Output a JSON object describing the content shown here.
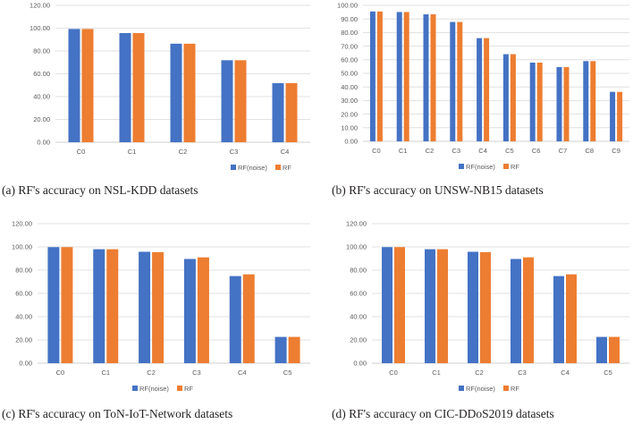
{
  "colors": {
    "rf_noise": "#4472c4",
    "rf": "#ed7d31",
    "grid": "#d9d9d9",
    "axis": "#bfbfbf",
    "text": "#595959"
  },
  "chart_data": [
    {
      "id": "a",
      "type": "bar",
      "caption": "(a) RF's  accuracy on NSL-KDD datasets",
      "categories": [
        "C0",
        "C1",
        "C2",
        "C3",
        "C4"
      ],
      "series": [
        {
          "name": "RF(noise)",
          "values": [
            99.3,
            95.7,
            86.4,
            71.9,
            51.8
          ]
        },
        {
          "name": "RF",
          "values": [
            99.3,
            95.7,
            86.4,
            71.9,
            51.8
          ]
        }
      ],
      "yticks": [
        "0.00",
        "20.00",
        "40.00",
        "60.00",
        "80.00",
        "100.00",
        "120.00"
      ],
      "ylim": [
        0,
        120
      ],
      "legend": "bottom-right"
    },
    {
      "id": "b",
      "type": "bar",
      "caption": "(b) RF's accuracy on UNSW-NB15 datasets",
      "categories": [
        "C0",
        "C1",
        "C2",
        "C3",
        "C4",
        "C5",
        "C6",
        "C7",
        "C8",
        "C9"
      ],
      "series": [
        {
          "name": "RF(noise)",
          "values": [
            95.5,
            95.1,
            93.4,
            87.8,
            75.9,
            64.1,
            57.9,
            54.6,
            59.0,
            36.4
          ]
        },
        {
          "name": "RF",
          "values": [
            95.5,
            95.1,
            93.4,
            87.8,
            75.9,
            64.1,
            57.9,
            54.6,
            59.0,
            36.4
          ]
        }
      ],
      "yticks": [
        "0.00",
        "10.00",
        "20.00",
        "30.00",
        "40.00",
        "50.00",
        "60.00",
        "70.00",
        "80.00",
        "90.00",
        "100.00"
      ],
      "ylim": [
        0,
        100
      ],
      "legend": "bottom-right"
    },
    {
      "id": "c",
      "type": "bar",
      "caption": "(c) RF's accuracy on ToN-IoT-Network datasets",
      "categories": [
        "C0",
        "C1",
        "C2",
        "C3",
        "C4",
        "C5"
      ],
      "series": [
        {
          "name": "RF(noise)",
          "values": [
            99.8,
            98.0,
            95.8,
            89.6,
            74.9,
            22.6
          ]
        },
        {
          "name": "RF",
          "values": [
            99.8,
            98.0,
            95.5,
            91.0,
            76.4,
            22.6
          ]
        }
      ],
      "yticks": [
        "0.00",
        "20.00",
        "40.00",
        "60.00",
        "80.00",
        "100.00",
        "120.00"
      ],
      "ylim": [
        0,
        120
      ],
      "legend": "bottom-right"
    },
    {
      "id": "d",
      "type": "bar",
      "caption": "(d) RF's accuracy on CIC-DDoS2019 datasets",
      "categories": [
        "C0",
        "C1",
        "C2",
        "C3",
        "C4",
        "C5"
      ],
      "series": [
        {
          "name": "RF(noise)",
          "values": [
            99.8,
            98.0,
            95.8,
            89.6,
            74.9,
            22.6
          ]
        },
        {
          "name": "RF",
          "values": [
            99.8,
            98.0,
            95.5,
            91.0,
            76.4,
            22.6
          ]
        }
      ],
      "yticks": [
        "0.00",
        "20.00",
        "40.00",
        "60.00",
        "80.00",
        "100.00",
        "120.00"
      ],
      "ylim": [
        0,
        120
      ],
      "legend": "bottom-right"
    }
  ]
}
